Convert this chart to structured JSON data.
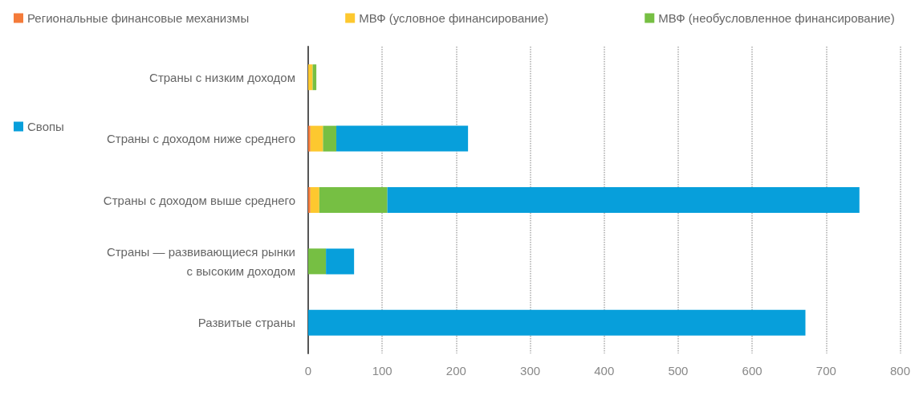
{
  "chart_data": {
    "type": "bar",
    "orientation": "horizontal",
    "stacked": true,
    "categories": [
      "Страны с низким доходом",
      "Страны с доходом ниже среднего",
      "Страны с доходом выше среднего",
      "Страны — развивающиеся рынки\nс высоким доходом",
      "Развитые страны"
    ],
    "series": [
      {
        "name": "Региональные финансовые механизмы",
        "color": "#f47b3a",
        "values": [
          0,
          3,
          3,
          0,
          0
        ]
      },
      {
        "name": "МВФ (условное финансирование)",
        "color": "#fdc82f",
        "values": [
          6,
          17,
          12,
          0,
          0
        ]
      },
      {
        "name": "МВФ (необусловленное финансирование)",
        "color": "#76bf43",
        "values": [
          5,
          18,
          92,
          24,
          0
        ]
      },
      {
        "name": "Свопы",
        "color": "#079fdb",
        "values": [
          0,
          178,
          638,
          38,
          672
        ]
      }
    ],
    "xlim": [
      0,
      800
    ],
    "xticks": [
      0,
      100,
      200,
      300,
      400,
      500,
      600,
      700,
      800
    ],
    "grid": "x",
    "legend": "top left"
  }
}
